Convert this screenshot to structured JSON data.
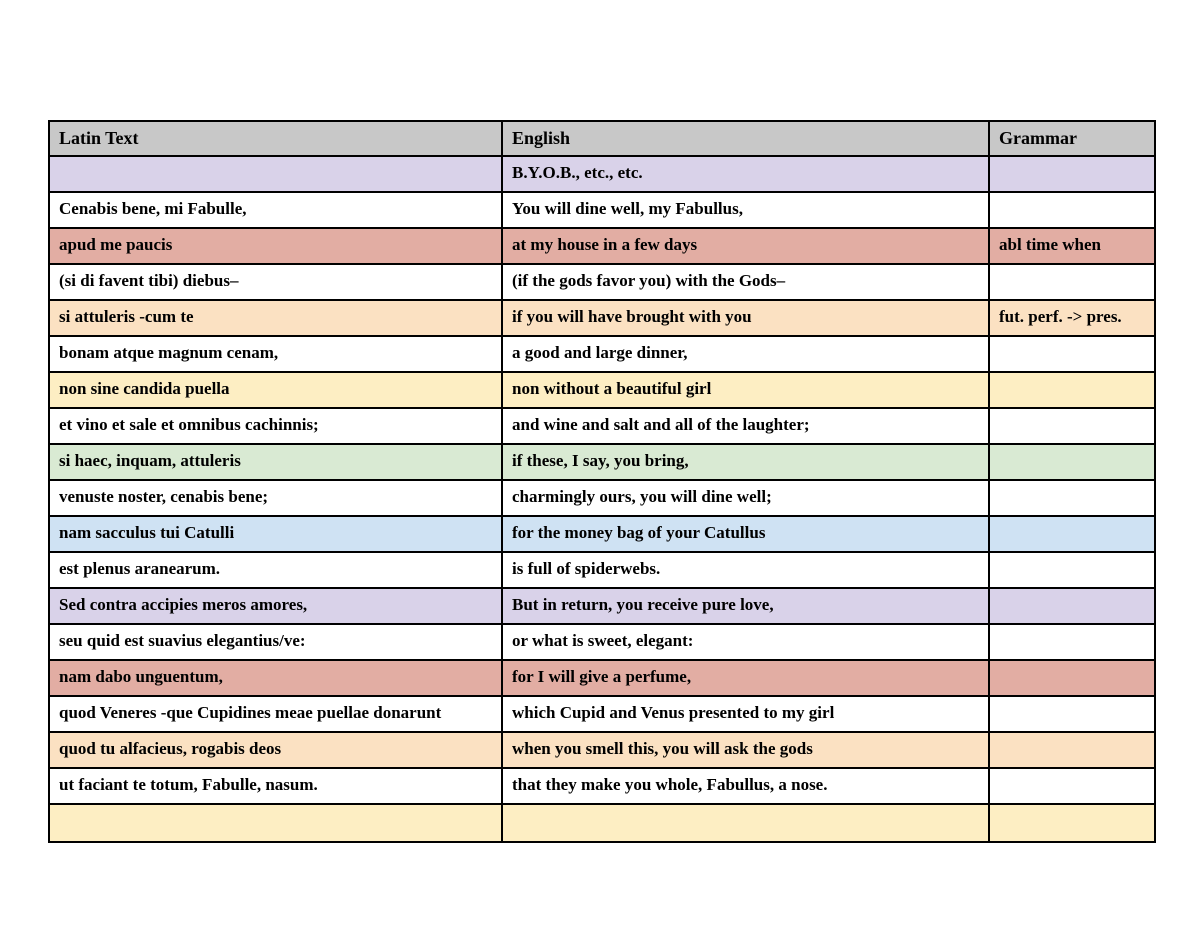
{
  "document": {
    "colors": {
      "header_bg": "#c8c8c8",
      "border": "#000000",
      "white": "#ffffff",
      "lavender": "#d9d2e9",
      "salmon": "#e2ada3",
      "peach": "#fbe1c2",
      "cream": "#fdeec3",
      "green": "#d9ead3",
      "blue": "#cfe2f3"
    },
    "table": {
      "columns": [
        "Latin Text",
        "English",
        "Grammar"
      ],
      "rows": [
        {
          "latin": "",
          "english": "B.Y.O.B., etc., etc.",
          "grammar": "",
          "color": "lavender"
        },
        {
          "latin": "Cenabis bene, mi Fabulle,",
          "english": "You will dine well, my Fabullus,",
          "grammar": "",
          "color": "white"
        },
        {
          "latin": "apud me paucis",
          "english": "at my house in a few days",
          "grammar": "abl time when",
          "color": "salmon"
        },
        {
          "latin": "(si di favent tibi) diebus–",
          "english": "(if the gods favor you) with the Gods–",
          "grammar": "",
          "color": "white"
        },
        {
          "latin": "si attuleris -cum te",
          "english": "if you will have brought with you",
          "grammar": "fut. perf. -> pres.",
          "color": "peach"
        },
        {
          "latin": "bonam atque magnum cenam,",
          "english": "a good and large dinner,",
          "grammar": "",
          "color": "white"
        },
        {
          "latin": "non sine candida puella",
          "english": "non without a beautiful girl",
          "grammar": "",
          "color": "cream"
        },
        {
          "latin": "et vino et sale et omnibus cachinnis;",
          "english": "and wine and salt and all of the laughter;",
          "grammar": "",
          "color": "white"
        },
        {
          "latin": "si haec, inquam, attuleris",
          "english": "if these, I say, you bring,",
          "grammar": "",
          "color": "green"
        },
        {
          "latin": "venuste noster, cenabis bene;",
          "english": "charmingly ours, you will dine well;",
          "grammar": "",
          "color": "white"
        },
        {
          "latin": "nam sacculus tui Catulli",
          "english": "for the money bag of your Catullus",
          "grammar": "",
          "color": "blue"
        },
        {
          "latin": "est plenus aranearum.",
          "english": "is full of spiderwebs.",
          "grammar": "",
          "color": "white"
        },
        {
          "latin": "Sed contra accipies meros amores,",
          "english": "But in return, you receive pure love,",
          "grammar": "",
          "color": "lavender"
        },
        {
          "latin": "seu quid est suavius elegantius/ve:",
          "english": "or what is sweet, elegant:",
          "grammar": "",
          "color": "white"
        },
        {
          "latin": "nam dabo unguentum,",
          "english": "for I will give a perfume,",
          "grammar": "",
          "color": "salmon"
        },
        {
          "latin": "quod Veneres -que Cupidines meae puellae donarunt",
          "english": "which Cupid and Venus presented to my girl",
          "grammar": "",
          "color": "white"
        },
        {
          "latin": "quod tu alfacieus, rogabis deos",
          "english": "when you smell this, you will ask the gods",
          "grammar": "",
          "color": "peach"
        },
        {
          "latin": "ut faciant te totum, Fabulle, nasum.",
          "english": "that they make you whole, Fabullus, a nose.",
          "grammar": "",
          "color": "white"
        },
        {
          "latin": "",
          "english": "",
          "grammar": "",
          "color": "cream"
        }
      ]
    }
  }
}
